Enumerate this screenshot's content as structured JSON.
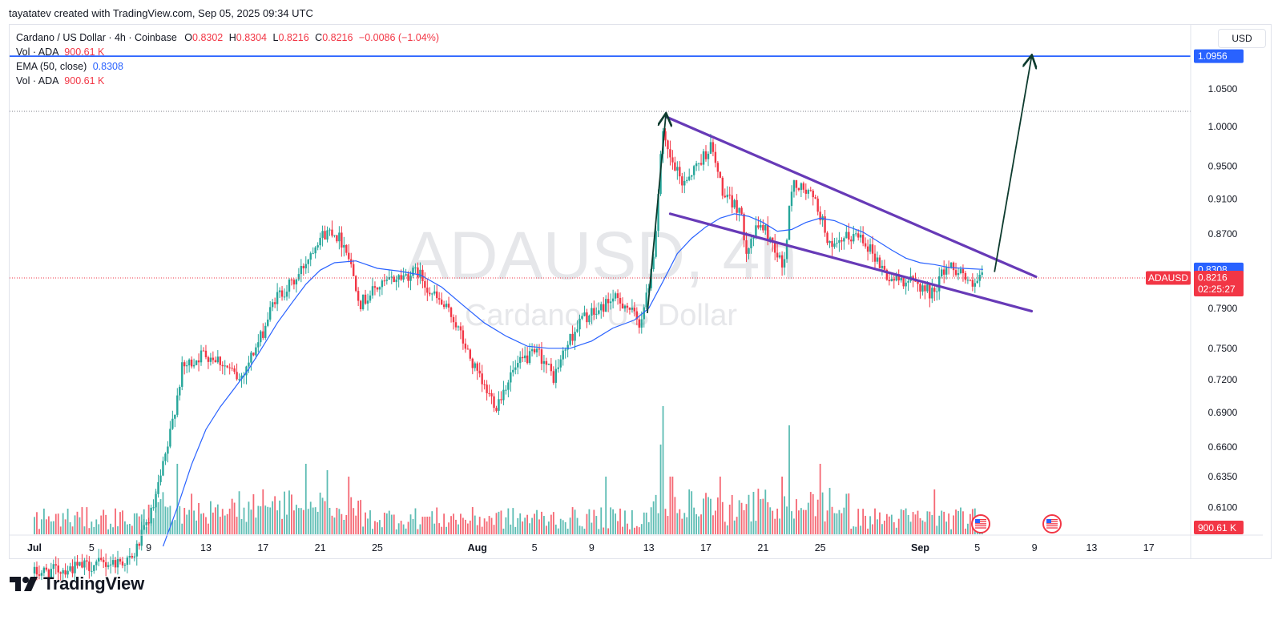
{
  "header": {
    "attribution": "tayatatev created with TradingView.com, Sep 05, 2025 09:34 UTC"
  },
  "legend": {
    "symbol": "Cardano / US Dollar · 4h · Coinbase",
    "open_label": "O",
    "open": "0.8302",
    "high_label": "H",
    "high": "0.8304",
    "low_label": "L",
    "low": "0.8216",
    "close_label": "C",
    "close": "0.8216",
    "change": "−0.0086 (−1.04%)",
    "vol1_label": "Vol · ADA",
    "vol1_value": "900.61 K",
    "ema_label": "EMA (50, close)",
    "ema_value": "0.8308",
    "vol2_label": "Vol · ADA",
    "vol2_value": "900.61 K"
  },
  "currency": "USD",
  "watermark": {
    "symbol": "ADAUSD, 4h",
    "name": "Cardano / US Dollar"
  },
  "logo_text": "TradingView",
  "colors": {
    "up": "#26a69a",
    "down": "#f23645",
    "ema": "#2962ff",
    "pattern": "#673ab7",
    "target": "#2962ff",
    "arrow": "#0d3b2e"
  },
  "chart_data": {
    "type": "candlestick",
    "symbol": "ADAUSD",
    "timeframe": "4h",
    "y_scale": "log",
    "price_ticks": [
      1.05,
      1.0,
      0.95,
      0.91,
      0.87,
      0.79,
      0.75,
      0.72,
      0.69,
      0.66,
      0.635,
      0.61
    ],
    "x_ticks": [
      {
        "day": 1,
        "label": "Jul"
      },
      {
        "day": 5,
        "label": "5"
      },
      {
        "day": 9,
        "label": "9"
      },
      {
        "day": 13,
        "label": "13"
      },
      {
        "day": 17,
        "label": "17"
      },
      {
        "day": 21,
        "label": "21"
      },
      {
        "day": 25,
        "label": "25"
      },
      {
        "day": 32,
        "label": "Aug"
      },
      {
        "day": 36,
        "label": "5"
      },
      {
        "day": 40,
        "label": "9"
      },
      {
        "day": 44,
        "label": "13"
      },
      {
        "day": 48,
        "label": "17"
      },
      {
        "day": 52,
        "label": "21"
      },
      {
        "day": 56,
        "label": "25"
      },
      {
        "day": 63,
        "label": "Sep"
      },
      {
        "day": 67,
        "label": "5"
      },
      {
        "day": 71,
        "label": "9"
      },
      {
        "day": 75,
        "label": "13"
      },
      {
        "day": 79,
        "label": "17"
      }
    ],
    "price_path": [
      [
        1,
        0.56
      ],
      [
        8,
        0.57
      ],
      [
        9.5,
        0.61
      ],
      [
        10.5,
        0.66
      ],
      [
        11.5,
        0.73
      ],
      [
        13,
        0.745
      ],
      [
        14,
        0.74
      ],
      [
        15.5,
        0.72
      ],
      [
        17,
        0.76
      ],
      [
        18,
        0.8
      ],
      [
        19.5,
        0.82
      ],
      [
        21,
        0.865
      ],
      [
        22,
        0.875
      ],
      [
        23,
        0.855
      ],
      [
        24,
        0.795
      ],
      [
        25,
        0.81
      ],
      [
        26.5,
        0.822
      ],
      [
        28,
        0.828
      ],
      [
        29,
        0.805
      ],
      [
        30.5,
        0.78
      ],
      [
        31.5,
        0.745
      ],
      [
        32.5,
        0.715
      ],
      [
        33.5,
        0.697
      ],
      [
        34.5,
        0.725
      ],
      [
        35.5,
        0.74
      ],
      [
        36.5,
        0.745
      ],
      [
        37.5,
        0.722
      ],
      [
        38.5,
        0.755
      ],
      [
        39.5,
        0.78
      ],
      [
        40.5,
        0.785
      ],
      [
        41.5,
        0.8
      ],
      [
        42.5,
        0.795
      ],
      [
        43.5,
        0.775
      ],
      [
        44,
        0.8
      ],
      [
        44.6,
        0.86
      ],
      [
        45.1,
        0.99
      ],
      [
        45.6,
        0.96
      ],
      [
        46.5,
        0.93
      ],
      [
        47.5,
        0.95
      ],
      [
        48.5,
        0.975
      ],
      [
        49.5,
        0.91
      ],
      [
        50.5,
        0.9
      ],
      [
        51,
        0.855
      ],
      [
        52,
        0.882
      ],
      [
        53,
        0.855
      ],
      [
        53.6,
        0.83
      ],
      [
        54.2,
        0.93
      ],
      [
        55.5,
        0.915
      ],
      [
        56,
        0.9
      ],
      [
        57,
        0.85
      ],
      [
        58,
        0.865
      ],
      [
        59,
        0.87
      ],
      [
        60,
        0.845
      ],
      [
        61,
        0.82
      ],
      [
        62,
        0.82
      ],
      [
        63,
        0.815
      ],
      [
        64,
        0.805
      ],
      [
        65,
        0.835
      ],
      [
        66,
        0.83
      ],
      [
        66.8,
        0.81
      ],
      [
        67.4,
        0.8216
      ]
    ],
    "ema_path": [
      [
        10,
        0.58
      ],
      [
        11,
        0.61
      ],
      [
        12,
        0.645
      ],
      [
        13,
        0.675
      ],
      [
        14,
        0.695
      ],
      [
        15,
        0.712
      ],
      [
        16,
        0.73
      ],
      [
        17,
        0.752
      ],
      [
        18,
        0.775
      ],
      [
        19,
        0.795
      ],
      [
        20,
        0.815
      ],
      [
        21,
        0.83
      ],
      [
        22,
        0.838
      ],
      [
        23.5,
        0.84
      ],
      [
        25,
        0.832
      ],
      [
        26.5,
        0.829
      ],
      [
        28,
        0.825
      ],
      [
        29.5,
        0.812
      ],
      [
        31,
        0.793
      ],
      [
        32.5,
        0.775
      ],
      [
        34,
        0.762
      ],
      [
        35.5,
        0.752
      ],
      [
        37,
        0.75
      ],
      [
        38.5,
        0.75
      ],
      [
        40,
        0.757
      ],
      [
        41.5,
        0.77
      ],
      [
        43,
        0.778
      ],
      [
        44,
        0.79
      ],
      [
        45,
        0.818
      ],
      [
        46,
        0.848
      ],
      [
        47,
        0.865
      ],
      [
        48,
        0.878
      ],
      [
        49,
        0.888
      ],
      [
        50,
        0.893
      ],
      [
        51,
        0.89
      ],
      [
        52,
        0.883
      ],
      [
        53,
        0.873
      ],
      [
        54,
        0.875
      ],
      [
        55,
        0.883
      ],
      [
        56,
        0.888
      ],
      [
        57,
        0.885
      ],
      [
        58,
        0.878
      ],
      [
        59,
        0.872
      ],
      [
        60,
        0.862
      ],
      [
        61,
        0.852
      ],
      [
        62,
        0.843
      ],
      [
        63,
        0.838
      ],
      [
        64,
        0.836
      ],
      [
        65,
        0.833
      ],
      [
        66,
        0.832
      ],
      [
        67.4,
        0.8308
      ]
    ],
    "horizontal_levels": [
      {
        "name": "target",
        "price": 1.0956,
        "style": "solid"
      },
      {
        "name": "prior-high",
        "price": 1.02,
        "style": "dotted"
      },
      {
        "name": "last-price",
        "price": 0.8216,
        "style": "dotted"
      }
    ],
    "falling_wedge": {
      "upper": [
        [
          45.3,
          1.012
        ],
        [
          71.1,
          0.823
        ]
      ],
      "lower": [
        [
          45.5,
          0.893
        ],
        [
          70.8,
          0.787
        ]
      ]
    },
    "arrows": [
      {
        "from": [
          43.9,
          0.785
        ],
        "to": [
          45.2,
          1.016
        ]
      },
      {
        "from": [
          68.2,
          0.828
        ],
        "to": [
          70.8,
          1.0956
        ]
      }
    ],
    "price_labels": [
      {
        "text": "1.0956",
        "price": 1.0956,
        "color": "#2962ff"
      },
      {
        "text": "0.8308",
        "price": 0.8308,
        "color": "#2962ff"
      },
      {
        "text": "0.8216",
        "price": 0.8216,
        "color": "#f23645",
        "subtext": "02:25:27",
        "symbol": "ADAUSD"
      }
    ],
    "volume_label": "900.61 K",
    "volume": {
      "last": "900.61 K",
      "spikes": [
        [
          11,
          0.55
        ],
        [
          20,
          0.55
        ],
        [
          21.5,
          0.5
        ],
        [
          23,
          0.45
        ],
        [
          41,
          0.45
        ],
        [
          45,
          1.0
        ],
        [
          44.8,
          0.7
        ],
        [
          45.6,
          0.45
        ],
        [
          46.8,
          0.35
        ],
        [
          49,
          0.45
        ],
        [
          53.8,
          0.85
        ],
        [
          56,
          0.55
        ],
        [
          53.3,
          0.45
        ],
        [
          64,
          0.35
        ]
      ]
    }
  }
}
